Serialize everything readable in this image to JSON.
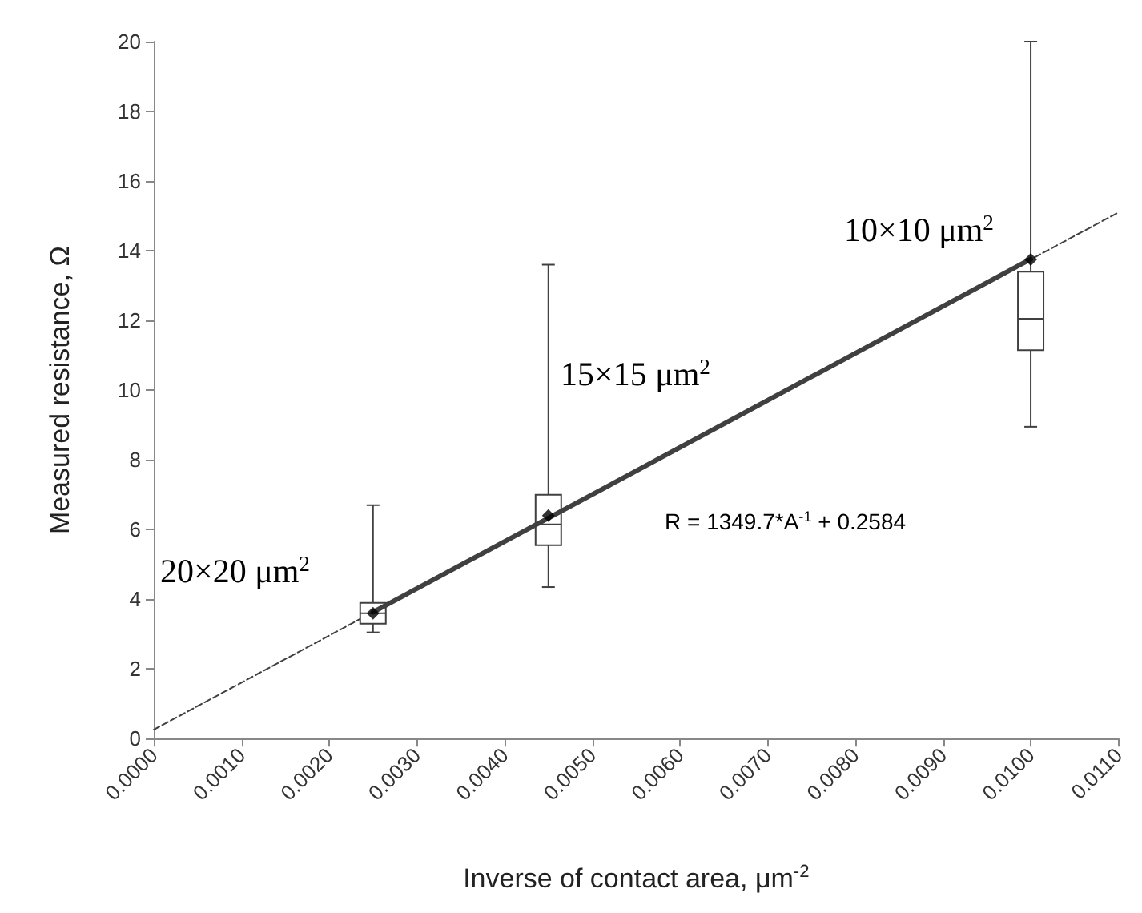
{
  "chart_data": {
    "type": "box",
    "xlabel": "Inverse of contact area, μm$^{-2}$",
    "ylabel": "Measured resistance, Ω",
    "xlim": [
      0,
      0.011
    ],
    "ylim": [
      0,
      20
    ],
    "xticks": [
      {
        "value": 0,
        "label": "0.0000"
      },
      {
        "value": 0.001,
        "label": "0.0010"
      },
      {
        "value": 0.002,
        "label": "0.0020"
      },
      {
        "value": 0.003,
        "label": "0.0030"
      },
      {
        "value": 0.004,
        "label": "0.0040"
      },
      {
        "value": 0.005,
        "label": "0.0050"
      },
      {
        "value": 0.006,
        "label": "0.0060"
      },
      {
        "value": 0.007,
        "label": "0.0070"
      },
      {
        "value": 0.008,
        "label": "0.0080"
      },
      {
        "value": 0.009,
        "label": "0.0090"
      },
      {
        "value": 0.01,
        "label": "0.0100"
      },
      {
        "value": 0.011,
        "label": "0.0110"
      }
    ],
    "yticks": [
      0,
      2,
      4,
      6,
      8,
      10,
      12,
      14,
      16,
      18,
      20
    ],
    "grid": false,
    "series": [
      {
        "color": "#404040",
        "marker": "diamond",
        "x": [
          0.0025,
          0.0045,
          0.01
        ],
        "boxes": [
          {
            "low": 3.05,
            "q1": 3.3,
            "median": 3.6,
            "q3": 3.9,
            "high": 6.7,
            "mean": 3.6
          },
          {
            "low": 4.35,
            "q1": 5.55,
            "median": 6.15,
            "q3": 7.0,
            "high": 13.6,
            "mean": 6.4
          },
          {
            "low": 8.95,
            "q1": 11.15,
            "median": 12.05,
            "q3": 13.4,
            "high": 20,
            "mean": 13.75
          }
        ]
      },
      {
        "type": "line",
        "color": "#404040",
        "line_style": "dashed",
        "x": [
          0,
          0.011
        ],
        "values": [
          0.26,
          15.1
        ]
      },
      {
        "type": "line",
        "color": "#404040",
        "line_style": "solid",
        "x": [
          0.0025,
          0.01
        ],
        "values": [
          3.63,
          13.76
        ]
      }
    ],
    "annotations": [
      "20×20 μm$^{2}$",
      "15×15 μm$^{2}$",
      "10×10 μm$^{2}$",
      "R = 1349.7*A$^{-1}$ + 0.2584"
    ]
  }
}
